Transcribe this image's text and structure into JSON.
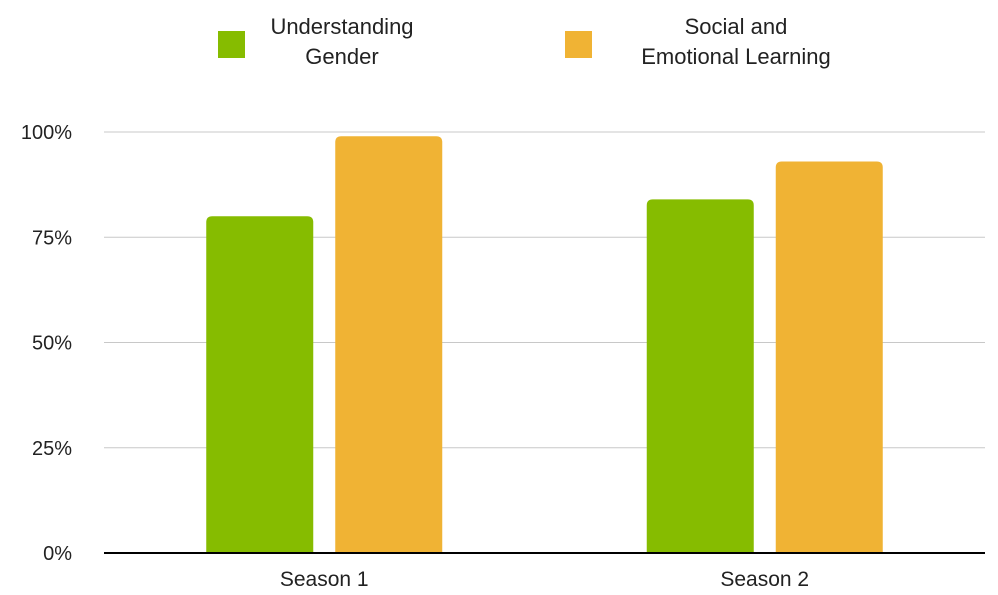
{
  "chart_data": {
    "type": "bar",
    "categories": [
      "Season 1",
      "Season 2"
    ],
    "series": [
      {
        "name": "Understanding Gender",
        "name_lines": [
          "Understanding",
          "Gender"
        ],
        "color": "#86bc00",
        "values": [
          80,
          84
        ]
      },
      {
        "name": "Social and Emotional Learning",
        "name_lines": [
          "Social and",
          "Emotional Learning"
        ],
        "color": "#f0b334",
        "values": [
          99,
          93
        ]
      }
    ],
    "yticks": [
      "0%",
      "25%",
      "50%",
      "75%",
      "100%"
    ],
    "ylim": [
      0,
      100
    ],
    "ytick_values": [
      0,
      25,
      50,
      75,
      100
    ],
    "legend_position": "top",
    "grid": true,
    "gridline_color": "#c8c8c8",
    "axis_color": "#000000"
  }
}
